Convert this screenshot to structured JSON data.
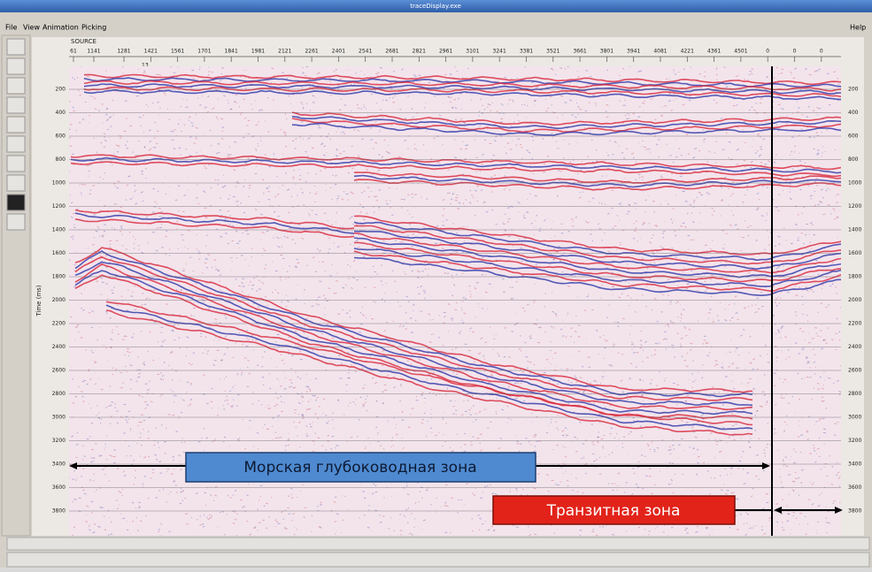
{
  "window": {
    "title": "traceDisplay.exe"
  },
  "menu": [
    "File",
    "View",
    "Animation",
    "Picking"
  ],
  "help": "Help",
  "header": {
    "label": "SOURCE",
    "marker": "13",
    "traces": [
      "61",
      "1141",
      "1281",
      "1421",
      "1561",
      "1701",
      "1841",
      "1981",
      "2121",
      "2261",
      "2401",
      "2541",
      "2681",
      "2821",
      "2961",
      "3101",
      "3241",
      "3381",
      "3521",
      "3661",
      "3801",
      "3941",
      "4081",
      "4221",
      "4361",
      "4501",
      "0",
      "0",
      "0"
    ]
  },
  "axis": {
    "label": "Time (ms)",
    "times": [
      "200",
      "400",
      "600",
      "800",
      "1000",
      "1200",
      "1400",
      "1600",
      "1800",
      "2000",
      "2200",
      "2400",
      "2600",
      "2800",
      "3000",
      "3200",
      "3400",
      "3600",
      "3800"
    ]
  },
  "annotations": {
    "deep_water": "Морская глубоководная зона",
    "transit": "Транзитная зона"
  }
}
